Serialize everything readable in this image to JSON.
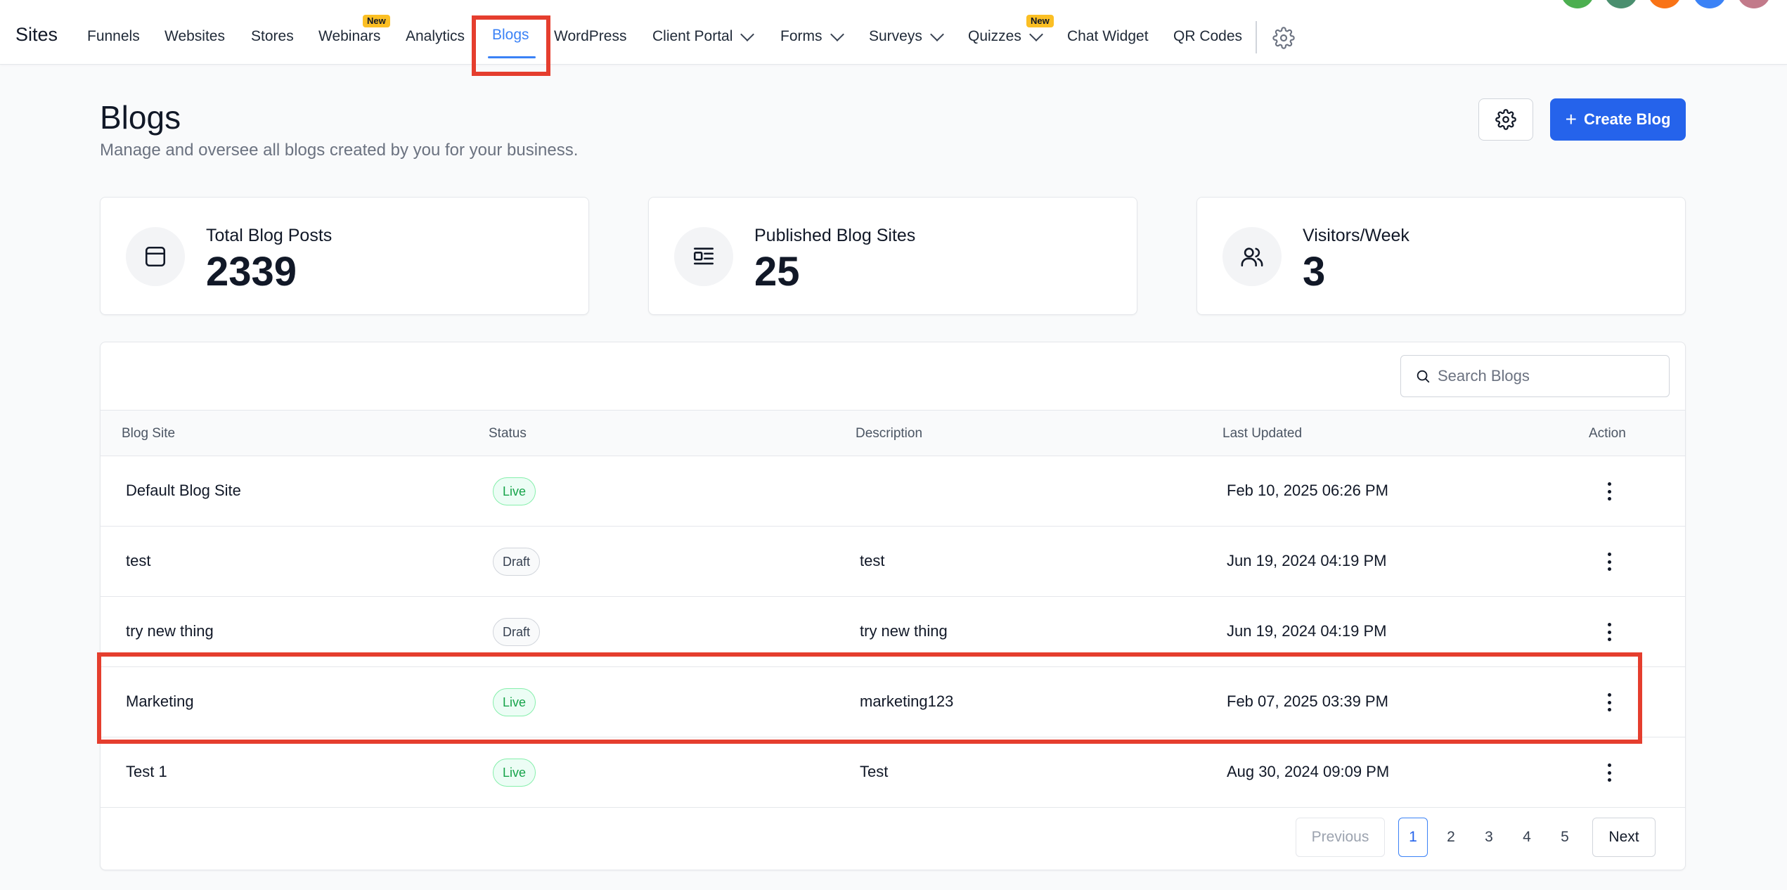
{
  "nav": {
    "brand": "Sites",
    "items": [
      {
        "label": "Funnels"
      },
      {
        "label": "Websites"
      },
      {
        "label": "Stores"
      },
      {
        "label": "Webinars",
        "badge": "New"
      },
      {
        "label": "Analytics"
      },
      {
        "label": "Blogs",
        "active": true
      },
      {
        "label": "WordPress"
      },
      {
        "label": "Client Portal",
        "dropdown": true
      },
      {
        "label": "Forms",
        "dropdown": true
      },
      {
        "label": "Surveys",
        "dropdown": true
      },
      {
        "label": "Quizzes",
        "badge": "New",
        "dropdown": true
      },
      {
        "label": "Chat Widget"
      },
      {
        "label": "QR Codes"
      }
    ],
    "settings_icon": "gear-icon",
    "avatar_colors": [
      "#4caf50",
      "#4a8f6f",
      "#f97316",
      "#3b82f6",
      "#c27a8a"
    ]
  },
  "header": {
    "title": "Blogs",
    "subtitle": "Manage and oversee all blogs created by you for your business.",
    "settings_icon": "gear-icon",
    "create_label": "Create Blog"
  },
  "stats": [
    {
      "label": "Total Blog Posts",
      "value": "2339",
      "icon": "browser-window-icon"
    },
    {
      "label": "Published Blog Sites",
      "value": "25",
      "icon": "article-icon"
    },
    {
      "label": "Visitors/Week",
      "value": "3",
      "icon": "users-icon"
    }
  ],
  "table": {
    "search_placeholder": "Search Blogs",
    "columns": [
      "Blog Site",
      "Status",
      "Description",
      "Last Updated",
      "Action"
    ],
    "rows": [
      {
        "name": "Default Blog Site",
        "status": "Live",
        "description": "",
        "updated": "Feb 10, 2025 06:26 PM"
      },
      {
        "name": "test",
        "status": "Draft",
        "description": "test",
        "updated": "Jun 19, 2024 04:19 PM"
      },
      {
        "name": "try new thing",
        "status": "Draft",
        "description": "try new thing",
        "updated": "Jun 19, 2024 04:19 PM"
      },
      {
        "name": "Marketing",
        "status": "Live",
        "description": "marketing123",
        "updated": "Feb 07, 2025 03:39 PM"
      },
      {
        "name": "Test 1",
        "status": "Live",
        "description": "Test",
        "updated": "Aug 30, 2024 09:09 PM"
      }
    ]
  },
  "pagination": {
    "previous_label": "Previous",
    "next_label": "Next",
    "pages": [
      "1",
      "2",
      "3",
      "4",
      "5"
    ],
    "current": "1"
  },
  "colors": {
    "accent": "#2563eb",
    "live": "#16a34a",
    "highlight": "#e53e2e"
  }
}
